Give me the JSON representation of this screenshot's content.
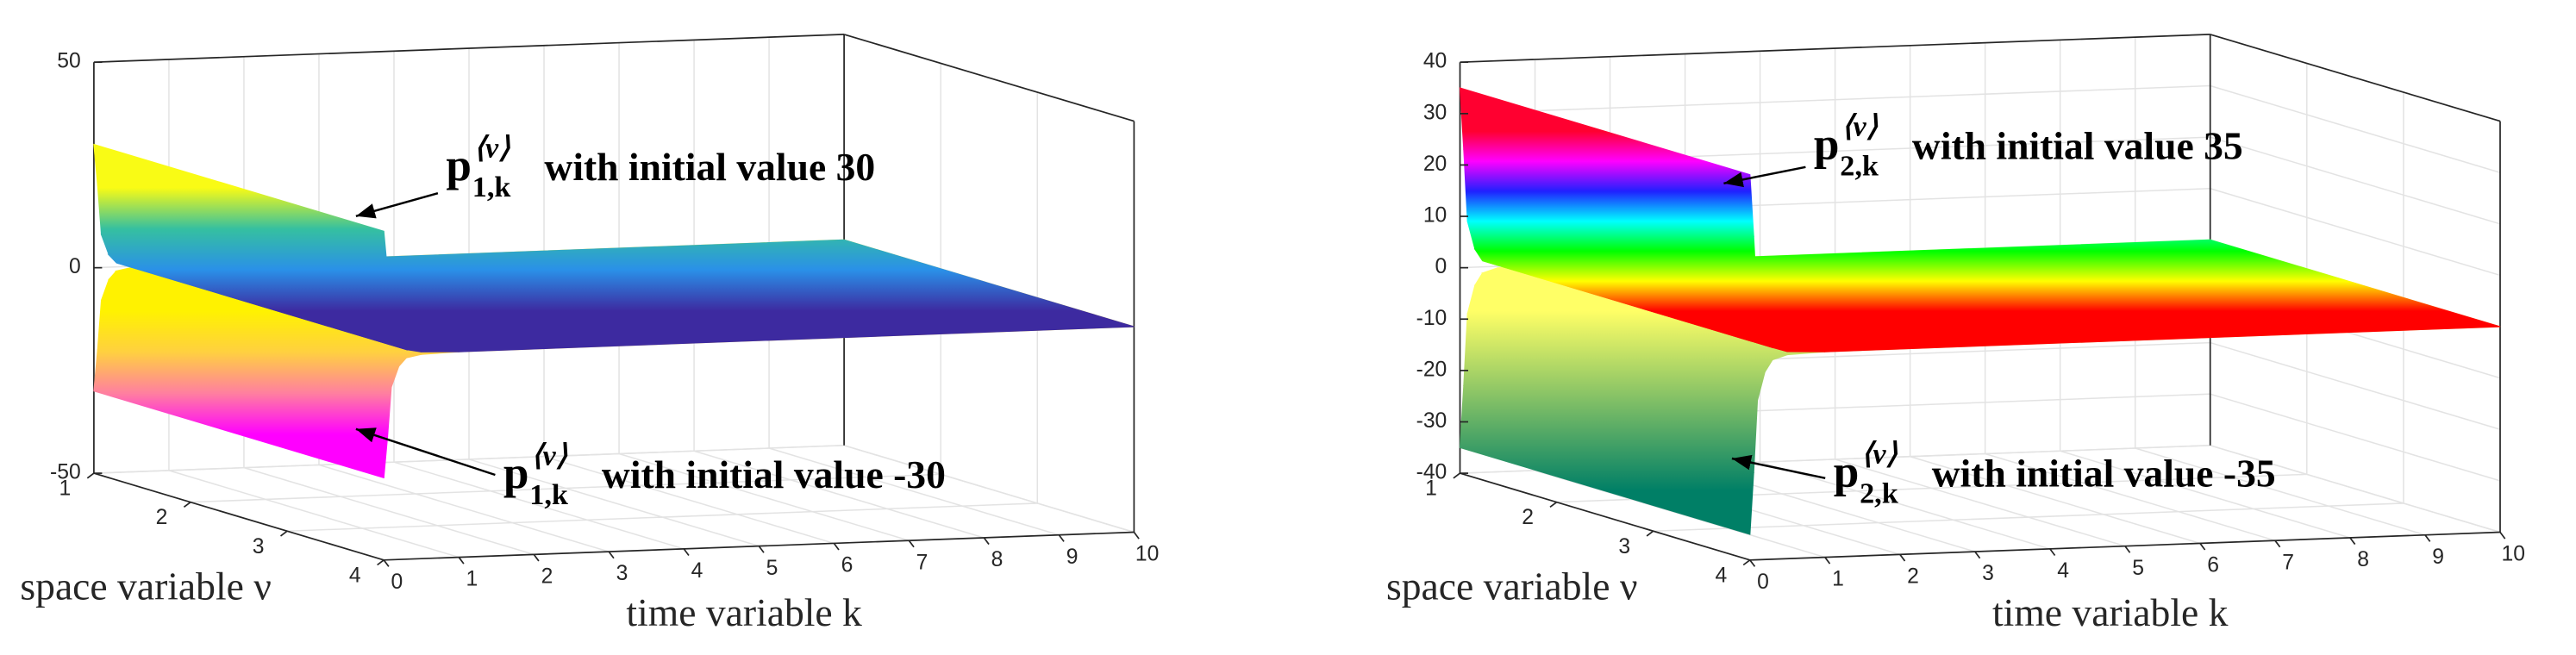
{
  "chart_data": [
    {
      "type": "surface",
      "xlabel": "time variable k",
      "ylabel": "space variable ν",
      "xlim": [
        0,
        10
      ],
      "xticks": [
        0,
        1,
        2,
        3,
        4,
        5,
        6,
        7,
        8,
        9,
        10
      ],
      "ylim": [
        1,
        4
      ],
      "yticks": [
        1,
        2,
        3,
        4
      ],
      "zlim": [
        -50,
        50
      ],
      "zticks": [
        -50,
        0,
        50
      ],
      "grid": true,
      "x": [
        0,
        0.05,
        0.1,
        0.2,
        0.3,
        0.5,
        1,
        2,
        10
      ],
      "surfaces": [
        {
          "values": [
            -30,
            -20,
            -8,
            -3,
            -1,
            -0.3,
            0,
            0,
            0
          ],
          "colormap": [
            "#ff00ff",
            "#ff7fa0",
            "#ffd040",
            "#fff200"
          ]
        },
        {
          "values": [
            30,
            20,
            8,
            3,
            1,
            0.3,
            0,
            0,
            0
          ],
          "colormap": [
            "#f9fb15",
            "#35c0a0",
            "#2a90e8",
            "#3d2aa0"
          ]
        }
      ],
      "annotations": [
        {
          "symbol": "p",
          "sup": "⟨ν⟩",
          "sub": "1,k",
          "text": "with initial value 30"
        },
        {
          "symbol": "p",
          "sup": "⟨ν⟩",
          "sub": "1,k",
          "text": "with initial value -30"
        }
      ]
    },
    {
      "type": "surface",
      "xlabel": "time variable k",
      "ylabel": "space variable ν",
      "xlim": [
        0,
        10
      ],
      "xticks": [
        0,
        1,
        2,
        3,
        4,
        5,
        6,
        7,
        8,
        9,
        10
      ],
      "ylim": [
        1,
        4
      ],
      "yticks": [
        1,
        2,
        3,
        4
      ],
      "zlim": [
        -40,
        40
      ],
      "zticks": [
        -40,
        -30,
        -20,
        -10,
        0,
        10,
        20,
        30,
        40
      ],
      "grid": true,
      "x": [
        0,
        0.05,
        0.1,
        0.2,
        0.3,
        0.5,
        1,
        2,
        10
      ],
      "surfaces": [
        {
          "values": [
            -35,
            -23,
            -9,
            -3.5,
            -1.2,
            -0.3,
            0,
            0,
            0
          ],
          "colormap": [
            "#007f66",
            "#80bf66",
            "#ffff66"
          ]
        },
        {
          "values": [
            35,
            23,
            9,
            3.5,
            1.2,
            0.3,
            0,
            0,
            0
          ],
          "colormap": [
            "#ff0030",
            "#ff00ff",
            "#2020ff",
            "#00ffff",
            "#00ff00",
            "#ffff00",
            "#ff0000"
          ]
        }
      ],
      "annotations": [
        {
          "symbol": "p",
          "sup": "⟨ν⟩",
          "sub": "2,k",
          "text": "with initial value 35"
        },
        {
          "symbol": "p",
          "sup": "⟨ν⟩",
          "sub": "2,k",
          "text": "with initial value -35"
        }
      ]
    }
  ]
}
